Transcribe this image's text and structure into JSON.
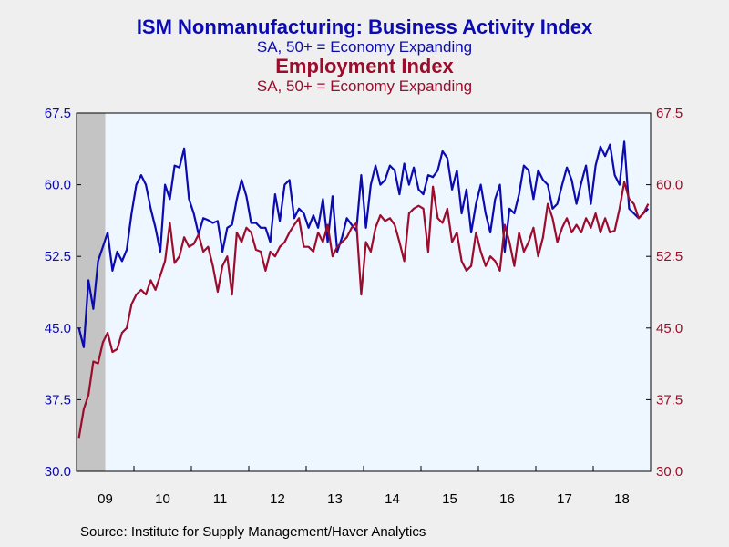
{
  "chart_data": {
    "type": "line",
    "titles": [
      {
        "title": "ISM Nonmanufacturing: Business Activity Index",
        "subtitle": "SA, 50+ = Economy Expanding",
        "color": "#0b0bb0"
      },
      {
        "title": "Employment Index",
        "subtitle": "SA, 50+ = Economy Expanding",
        "color": "#9c0c2c"
      }
    ],
    "x_ticks": [
      "09",
      "10",
      "11",
      "12",
      "13",
      "14",
      "15",
      "16",
      "17",
      "18"
    ],
    "x_range": [
      "2009-01",
      "2018-12"
    ],
    "y_left": {
      "ticks": [
        "30.0",
        "37.5",
        "45.0",
        "52.5",
        "60.0",
        "67.5"
      ],
      "ylim": [
        30,
        67.5
      ],
      "color": "#0b0bb0"
    },
    "y_right": {
      "ticks": [
        "30.0",
        "37.5",
        "45.0",
        "52.5",
        "60.0",
        "67.5"
      ],
      "ylim": [
        30,
        67.5
      ],
      "color": "#9c0c2c"
    },
    "recession_shading": [
      "2009-01",
      "2009-06"
    ],
    "start": "2009-01",
    "series": [
      {
        "name": "ISM Nonmanufacturing: Business Activity Index",
        "color": "#0b0bb0",
        "values": [
          45.0,
          43.0,
          50.0,
          47.0,
          52.0,
          53.5,
          55.0,
          51.0,
          53.0,
          52.0,
          53.2,
          57.0,
          60.0,
          61.0,
          60.0,
          57.5,
          55.5,
          53.0,
          60.0,
          58.5,
          62.0,
          61.8,
          63.8,
          58.5,
          57.0,
          54.8,
          56.5,
          56.3,
          56.0,
          56.2,
          53.0,
          55.5,
          55.8,
          58.5,
          60.5,
          58.8,
          56.0,
          56.0,
          55.5,
          55.5,
          54.0,
          59.0,
          56.2,
          60.0,
          60.5,
          56.5,
          57.5,
          57.0,
          55.5,
          56.8,
          55.5,
          58.5,
          54.0,
          58.8,
          53.0,
          54.5,
          56.5,
          55.8,
          55.2,
          61.0,
          55.5,
          60.0,
          62.0,
          60.0,
          60.5,
          62.0,
          61.5,
          59.0,
          62.2,
          60.0,
          61.8,
          59.5,
          59.0,
          61.0,
          60.8,
          61.5,
          63.5,
          62.8,
          59.5,
          61.5,
          57.0,
          59.5,
          55.0,
          58.0,
          60.0,
          57.0,
          55.0,
          58.5,
          60.0,
          53.0,
          57.5,
          57.0,
          59.0,
          62.0,
          61.5,
          58.5,
          61.5,
          60.5,
          60.0,
          57.5,
          58.0,
          60.0,
          61.8,
          60.5,
          58.0,
          60.2,
          62.0,
          58.0,
          62.0,
          64.0,
          63.0,
          64.2,
          61.0,
          60.0,
          64.5,
          57.5,
          57.0,
          56.5,
          57.0,
          57.5
        ]
      },
      {
        "name": "Employment Index",
        "color": "#9c0c2c",
        "values": [
          33.5,
          36.5,
          38.0,
          41.5,
          41.3,
          43.5,
          44.5,
          42.5,
          42.8,
          44.5,
          45.0,
          47.5,
          48.5,
          49.0,
          48.5,
          50.0,
          49.0,
          50.5,
          52.0,
          56.0,
          51.8,
          52.5,
          54.5,
          53.5,
          53.8,
          54.8,
          53.0,
          53.5,
          51.5,
          48.8,
          51.5,
          52.5,
          48.5,
          55.0,
          54.0,
          55.5,
          55.0,
          53.2,
          53.0,
          51.0,
          53.0,
          52.5,
          53.5,
          54.0,
          55.0,
          55.8,
          56.5,
          53.5,
          53.5,
          53.0,
          55.0,
          54.0,
          55.8,
          52.5,
          53.5,
          54.0,
          54.5,
          55.5,
          56.0,
          48.5,
          54.0,
          53.0,
          55.5,
          56.8,
          56.2,
          56.5,
          55.8,
          54.0,
          52.0,
          57.0,
          57.5,
          57.8,
          57.5,
          53.0,
          59.8,
          56.5,
          56.0,
          57.5,
          54.0,
          55.0,
          52.0,
          51.0,
          51.5,
          55.0,
          53.0,
          51.5,
          52.5,
          52.0,
          51.0,
          55.8,
          54.0,
          51.5,
          55.0,
          53.0,
          54.0,
          55.5,
          52.5,
          54.5,
          58.0,
          56.5,
          54.0,
          55.5,
          56.5,
          55.0,
          55.8,
          55.0,
          56.5,
          55.5,
          57.0,
          55.0,
          56.5,
          55.0,
          55.2,
          57.5,
          60.3,
          58.5,
          58.0,
          56.5,
          57.0,
          58.0
        ]
      }
    ]
  },
  "source": "Source:  Institute for Supply Management/Haver Analytics"
}
